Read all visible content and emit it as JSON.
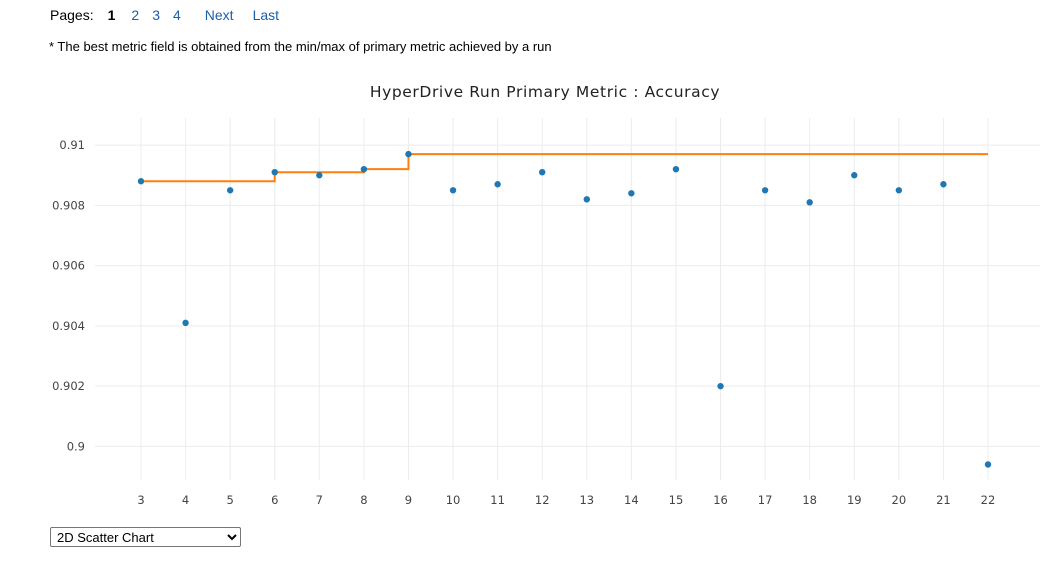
{
  "pager": {
    "label": "Pages:",
    "current": "1",
    "pages": [
      "2",
      "3",
      "4"
    ],
    "next_label": "Next",
    "last_label": "Last"
  },
  "note": "* The best metric field is obtained from the min/max of primary metric achieved by a run",
  "chart_data": {
    "type": "scatter",
    "title": "HyperDrive Run Primary Metric : Accuracy",
    "xlabel": "",
    "ylabel": "",
    "x_ticks": [
      "3",
      "4",
      "5",
      "6",
      "7",
      "8",
      "9",
      "10",
      "11",
      "12",
      "13",
      "14",
      "15",
      "16",
      "17",
      "18",
      "19",
      "20",
      "21",
      "22"
    ],
    "y_ticks": [
      "0.91",
      "0.908",
      "0.906",
      "0.904",
      "0.902",
      "0.9"
    ],
    "xlim": [
      3,
      22
    ],
    "ylim": [
      0.8994,
      0.9105
    ],
    "grid": true,
    "series": [
      {
        "type": "scatter",
        "color": "#1f77b4",
        "x": [
          3,
          4,
          5,
          6,
          7,
          8,
          9,
          10,
          11,
          12,
          13,
          14,
          15,
          16,
          17,
          18,
          19,
          20,
          21,
          22
        ],
        "y": [
          0.9088,
          0.9041,
          0.9085,
          0.9091,
          0.909,
          0.9092,
          0.9097,
          0.9085,
          0.9087,
          0.9091,
          0.9082,
          0.9084,
          0.9092,
          0.902,
          0.9085,
          0.9081,
          0.909,
          0.9085,
          0.9087,
          0.8994
        ]
      },
      {
        "type": "step-line",
        "color": "#ff7f0e",
        "x": [
          3,
          4,
          5,
          6,
          7,
          8,
          9,
          10,
          11,
          12,
          13,
          14,
          15,
          16,
          17,
          18,
          19,
          20,
          21,
          22
        ],
        "y": [
          0.9088,
          0.9088,
          0.9088,
          0.9091,
          0.9091,
          0.9092,
          0.9097,
          0.9097,
          0.9097,
          0.9097,
          0.9097,
          0.9097,
          0.9097,
          0.9097,
          0.9097,
          0.9097,
          0.9097,
          0.9097,
          0.9097,
          0.9097
        ]
      }
    ]
  },
  "chart_type_select": {
    "selected": "2D Scatter Chart"
  }
}
